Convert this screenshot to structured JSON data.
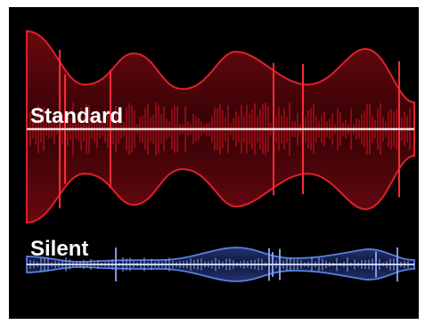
{
  "labels": {
    "standard": "Standard",
    "silent": "Silent"
  }
}
